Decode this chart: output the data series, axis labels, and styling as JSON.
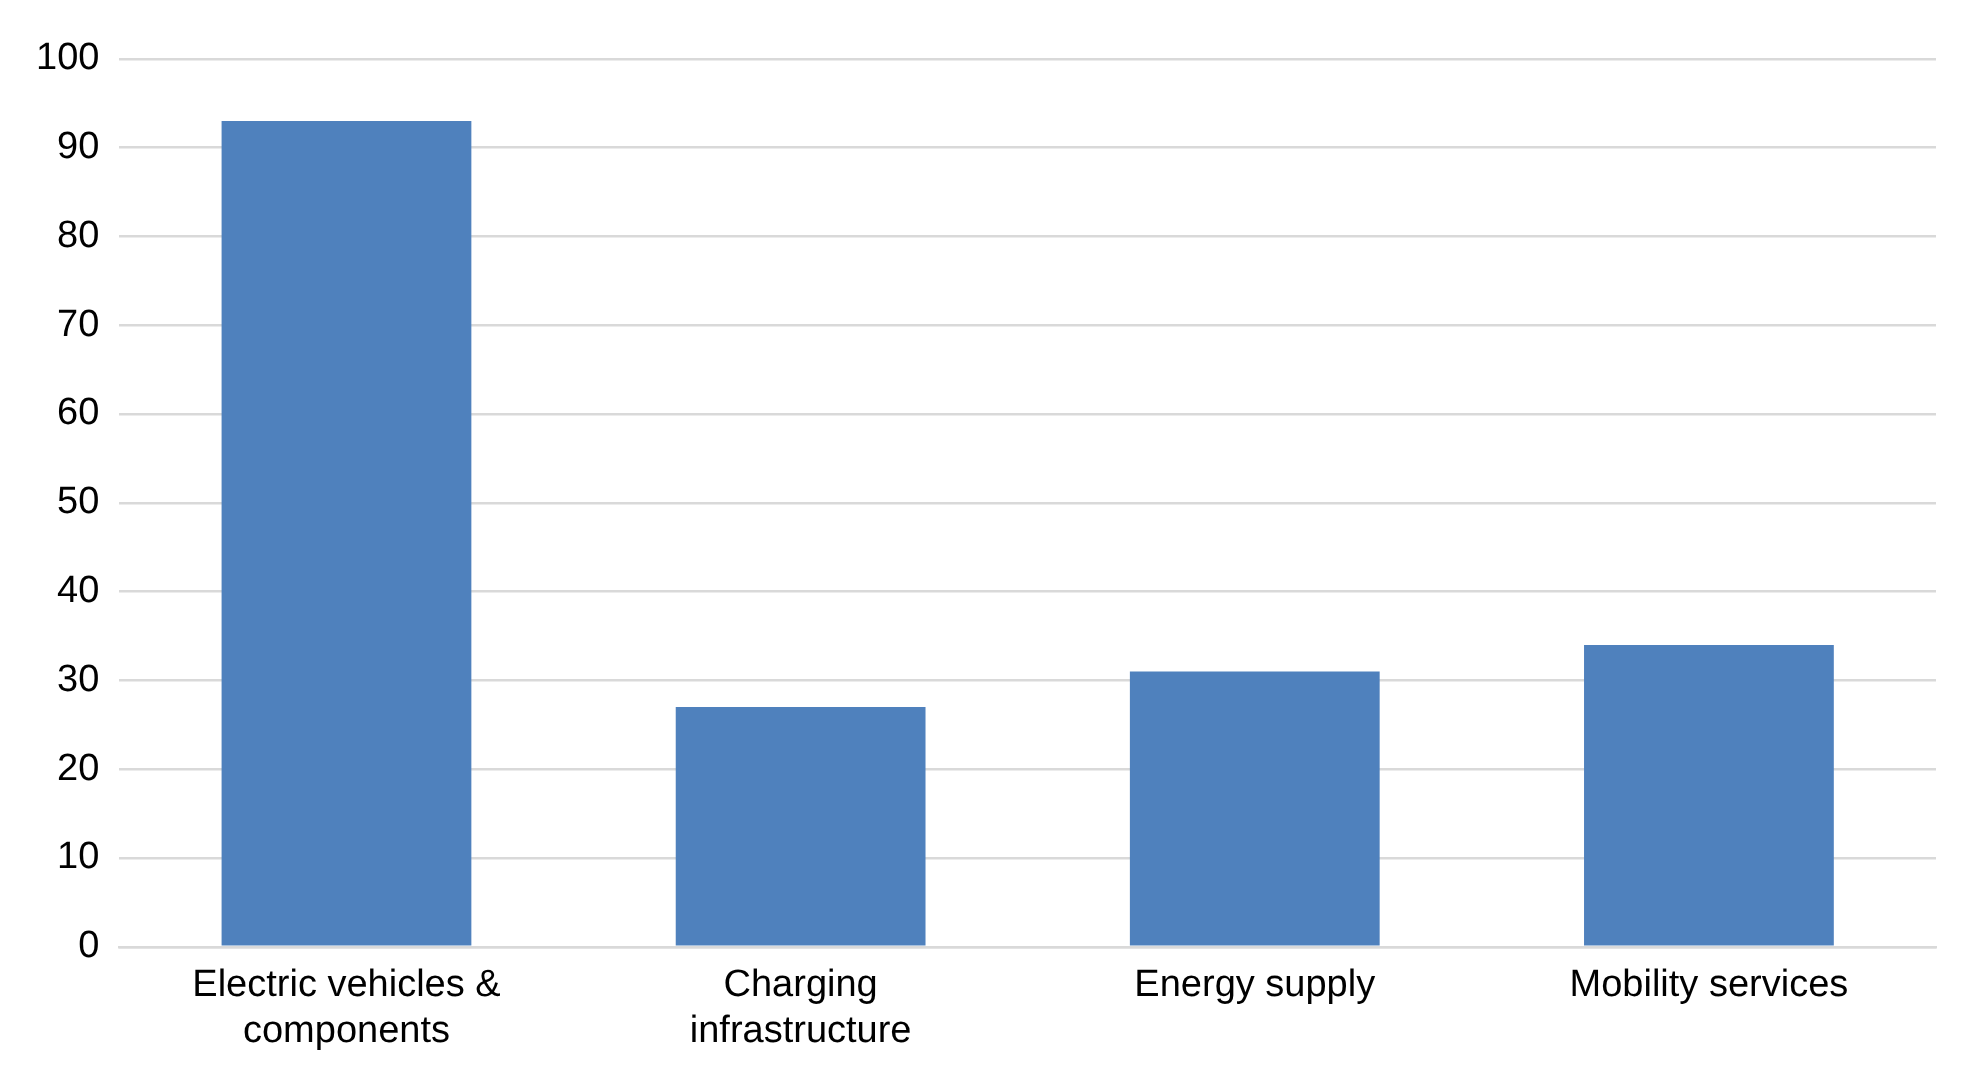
{
  "chart_data": {
    "type": "bar",
    "categories": [
      "Electric vehicles & components",
      "Charging infrastructure",
      "Energy supply",
      "Mobility services"
    ],
    "values": [
      93,
      27,
      31,
      34
    ],
    "color": "#4f81bd",
    "ylim": [
      0,
      100
    ],
    "yticks": [
      0,
      10,
      20,
      30,
      40,
      50,
      60,
      70,
      80,
      90,
      100
    ],
    "grid": "y",
    "legend": false
  }
}
